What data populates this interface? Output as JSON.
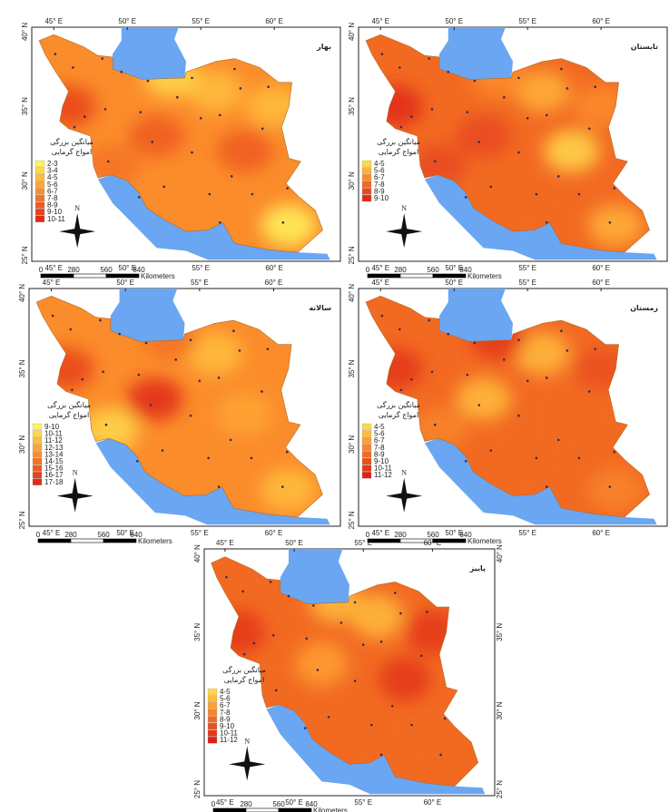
{
  "lon_labels": [
    "45° E",
    "50° E",
    "55° E",
    "60° E"
  ],
  "lat_labels": [
    "40° N",
    "35° N",
    "30° N",
    "25° N"
  ],
  "legend_title": [
    "میانگین بزرگی",
    "امواج گرمایی"
  ],
  "north": "N",
  "scale": {
    "ticks": [
      "0",
      "280",
      "560",
      "840"
    ],
    "unit": "Kilometers"
  },
  "panels": [
    {
      "title": "بهار",
      "classes": [
        {
          "label": "2-3",
          "color": "#fff35c"
        },
        {
          "label": "3-4",
          "color": "#ffd84a"
        },
        {
          "label": "4-5",
          "color": "#ffbe3d"
        },
        {
          "label": "5-6",
          "color": "#ffa533"
        },
        {
          "label": "6-7",
          "color": "#fb8c2b"
        },
        {
          "label": "7-8",
          "color": "#f57324"
        },
        {
          "label": "8-9",
          "color": "#ee5a1f"
        },
        {
          "label": "9-10",
          "color": "#e8421b"
        },
        {
          "label": "10-11",
          "color": "#e02a18"
        }
      ]
    },
    {
      "title": "تابستان",
      "classes": [
        {
          "label": "4-5",
          "color": "#ffd84a"
        },
        {
          "label": "5-6",
          "color": "#ffb03a"
        },
        {
          "label": "6-7",
          "color": "#fb8c2b"
        },
        {
          "label": "7-8",
          "color": "#f26a22"
        },
        {
          "label": "8-9",
          "color": "#e8481c"
        },
        {
          "label": "9-10",
          "color": "#e02a18"
        }
      ]
    },
    {
      "title": "سالانه",
      "classes": [
        {
          "label": "9-10",
          "color": "#fff35c"
        },
        {
          "label": "10-11",
          "color": "#ffd84a"
        },
        {
          "label": "11-12",
          "color": "#ffbe3d"
        },
        {
          "label": "12-13",
          "color": "#ffa533"
        },
        {
          "label": "13-14",
          "color": "#fb8c2b"
        },
        {
          "label": "14-15",
          "color": "#f57324"
        },
        {
          "label": "15-16",
          "color": "#ee5a1f"
        },
        {
          "label": "16-17",
          "color": "#e8421b"
        },
        {
          "label": "17-18",
          "color": "#e02a18"
        }
      ]
    },
    {
      "title": "زمستان",
      "classes": [
        {
          "label": "4-5",
          "color": "#ffd84a"
        },
        {
          "label": "5-6",
          "color": "#ffbc3c"
        },
        {
          "label": "6-7",
          "color": "#ffa032"
        },
        {
          "label": "7-8",
          "color": "#f8852a"
        },
        {
          "label": "8-9",
          "color": "#f26a22"
        },
        {
          "label": "9-10",
          "color": "#ea501d"
        },
        {
          "label": "10-11",
          "color": "#e4371a"
        },
        {
          "label": "11-12",
          "color": "#de2016"
        }
      ]
    },
    {
      "title": "پاییز",
      "classes": [
        {
          "label": "4-5",
          "color": "#ffd84a"
        },
        {
          "label": "5-6",
          "color": "#ffbc3c"
        },
        {
          "label": "6-7",
          "color": "#ffa032"
        },
        {
          "label": "7-8",
          "color": "#f8852a"
        },
        {
          "label": "8-9",
          "color": "#f26a22"
        },
        {
          "label": "9-10",
          "color": "#ea501d"
        },
        {
          "label": "10-11",
          "color": "#e4371a"
        },
        {
          "label": "11-12",
          "color": "#de2016"
        }
      ]
    }
  ]
}
